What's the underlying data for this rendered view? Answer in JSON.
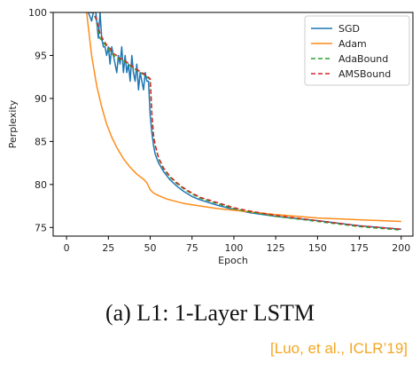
{
  "caption": "(a) L1: 1-Layer LSTM",
  "citation": "[Luo, et al., ICLR’19]",
  "chart_data": {
    "type": "line",
    "xlabel": "Epoch",
    "ylabel": "Perplexity",
    "xlim": [
      -8,
      207
    ],
    "ylim": [
      74,
      100
    ],
    "xticks": [
      0,
      25,
      50,
      75,
      100,
      125,
      150,
      175,
      200
    ],
    "yticks": [
      75,
      80,
      85,
      90,
      95,
      100
    ],
    "grid": false,
    "legend_position": "top-right",
    "series": [
      {
        "name": "SGD",
        "color": "#1f77b4",
        "style": "solid",
        "x": [
          13,
          15,
          17,
          18,
          19,
          20,
          21,
          22,
          23,
          24,
          25,
          26,
          27,
          28,
          29,
          30,
          31,
          32,
          33,
          34,
          35,
          36,
          37,
          38,
          39,
          40,
          41,
          42,
          43,
          44,
          45,
          46,
          47,
          48,
          49,
          50,
          51,
          52,
          53,
          55,
          58,
          62,
          66,
          70,
          75,
          80,
          90,
          100,
          110,
          125,
          150,
          175,
          200
        ],
        "y": [
          100,
          99,
          101,
          99,
          97,
          100,
          97,
          96,
          96,
          95,
          96,
          94,
          96,
          95,
          94,
          93,
          95,
          94,
          96,
          93,
          95,
          93,
          94,
          92,
          95,
          93,
          92,
          94,
          91,
          93,
          92,
          91,
          93,
          92,
          92,
          88,
          86,
          84.5,
          83.5,
          82.5,
          81.5,
          80.5,
          79.8,
          79.2,
          78.6,
          78.2,
          77.6,
          77.1,
          76.7,
          76.3,
          75.8,
          75.2,
          74.8
        ]
      },
      {
        "name": "Adam",
        "color": "#ff8c1a",
        "style": "solid",
        "x": [
          12,
          15,
          18,
          21,
          24,
          27,
          30,
          34,
          38,
          42,
          46,
          48,
          50,
          52,
          55,
          60,
          70,
          80,
          90,
          100,
          125,
          150,
          175,
          200
        ],
        "y": [
          100,
          95,
          91.5,
          89,
          87,
          85.5,
          84.3,
          83,
          82,
          81.2,
          80.6,
          80.2,
          79.4,
          79.0,
          78.7,
          78.3,
          77.8,
          77.5,
          77.2,
          77.0,
          76.5,
          76.1,
          75.9,
          75.7
        ]
      },
      {
        "name": "AdaBound",
        "color": "#2ca02c",
        "style": "dashed",
        "x": [
          14,
          16,
          18,
          20,
          22,
          24,
          26,
          28,
          30,
          32,
          34,
          36,
          38,
          40,
          42,
          44,
          46,
          48,
          50,
          51,
          52,
          53,
          55,
          58,
          62,
          66,
          70,
          75,
          80,
          90,
          100,
          110,
          125,
          150,
          175,
          200
        ],
        "y": [
          100,
          100,
          99,
          97,
          96.5,
          96,
          95.5,
          95,
          94.8,
          94.5,
          94.5,
          94,
          93.8,
          93.5,
          93.3,
          93,
          92.8,
          92.5,
          92.2,
          88,
          85.5,
          84.5,
          83,
          81.8,
          80.8,
          80.1,
          79.5,
          78.9,
          78.4,
          77.8,
          77.2,
          76.8,
          76.3,
          75.7,
          75.1,
          74.7
        ]
      },
      {
        "name": "AMSBound",
        "color": "#d62728",
        "style": "dashed",
        "x": [
          14,
          16,
          18,
          20,
          22,
          24,
          26,
          28,
          30,
          32,
          34,
          36,
          38,
          40,
          42,
          44,
          46,
          48,
          50,
          51,
          52,
          53,
          55,
          58,
          62,
          66,
          70,
          75,
          80,
          90,
          100,
          110,
          125,
          150,
          175,
          200
        ],
        "y": [
          100,
          100,
          99.2,
          97.5,
          96.8,
          96.2,
          95.8,
          95.2,
          95,
          94.6,
          94.6,
          94.2,
          94,
          93.6,
          93.4,
          93.1,
          92.9,
          92.6,
          92.3,
          88.2,
          85.7,
          84.6,
          83.1,
          81.9,
          80.9,
          80.2,
          79.6,
          79.0,
          78.5,
          77.9,
          77.3,
          76.9,
          76.4,
          75.8,
          75.2,
          74.8
        ]
      }
    ]
  }
}
